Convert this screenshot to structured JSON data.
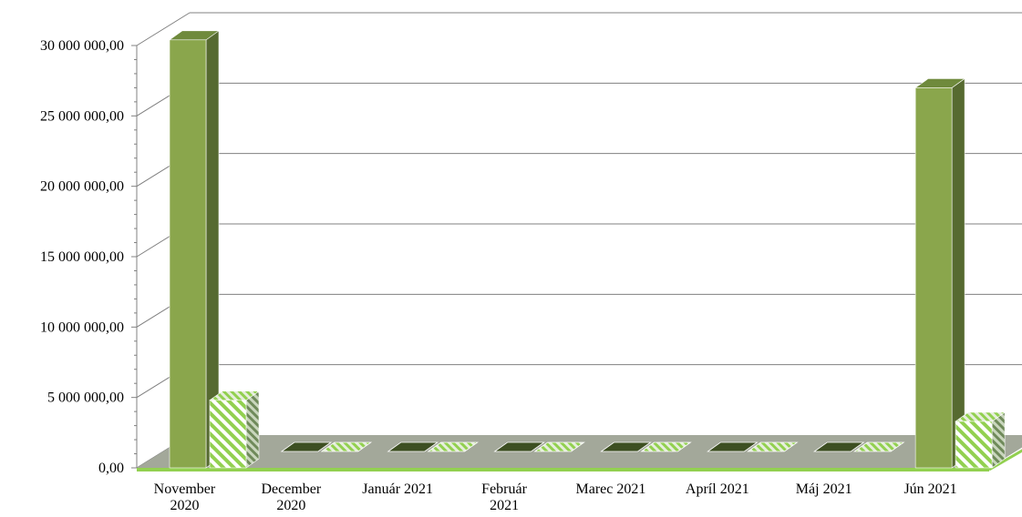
{
  "chart_data": {
    "type": "bar",
    "title": "",
    "xlabel": "",
    "ylabel": "",
    "ylim": [
      0,
      30000000
    ],
    "y_tick_labels": [
      "0,00",
      "5 000 000,00",
      "10 000 000,00",
      "15 000 000,00",
      "20 000 000,00",
      "25 000 000,00",
      "30 000 000,00"
    ],
    "categories": [
      [
        "November",
        "2020"
      ],
      [
        "December",
        "2020"
      ],
      [
        "Január 2021"
      ],
      [
        "Február",
        "2021"
      ],
      [
        "Marec 2021"
      ],
      [
        "Apríl 2021"
      ],
      [
        "Máj 2021"
      ],
      [
        "Jún 2021"
      ]
    ],
    "series": [
      {
        "style": "solid",
        "color": "#8aa64c",
        "values": [
          30400000,
          0,
          0,
          0,
          0,
          0,
          0,
          27000000
        ]
      },
      {
        "style": "hatched",
        "color": "#92d050",
        "values": [
          4800000,
          0,
          0,
          0,
          0,
          0,
          0,
          3300000
        ]
      }
    ],
    "grid": true,
    "legend": "none",
    "style": "3d-clustered-columns"
  },
  "colors": {
    "gridline": "#808080",
    "floor": "#a3a89a",
    "floor_edge": "#92d050",
    "bar_solid_front": "#8aa64c",
    "bar_solid_side": "#566a30",
    "bar_solid_top": "#6f8a3c",
    "bar_hatch_light": "#92d050",
    "bar_hatch_dark": "#4a6a2a"
  }
}
